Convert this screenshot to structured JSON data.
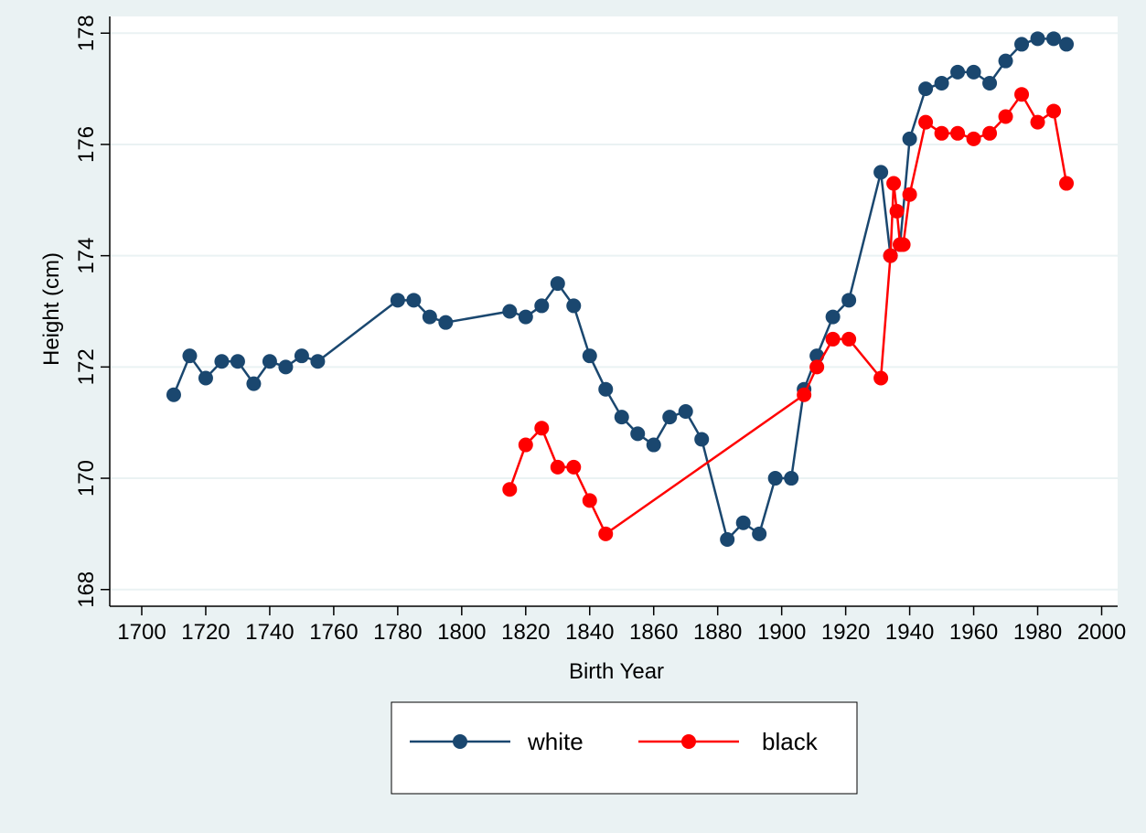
{
  "chart_data": {
    "type": "line",
    "xlabel": "Birth Year",
    "ylabel": "Height (cm)",
    "xlim": [
      1690,
      2005
    ],
    "ylim": [
      167.7,
      178.3
    ],
    "xticks": [
      1700,
      1720,
      1740,
      1760,
      1780,
      1800,
      1820,
      1840,
      1860,
      1880,
      1900,
      1920,
      1940,
      1960,
      1980,
      2000
    ],
    "yticks": [
      168,
      170,
      172,
      174,
      176,
      178
    ],
    "grid": true,
    "legend_position": "bottom",
    "series": [
      {
        "name": "white",
        "color": "#1a476f",
        "x": [
          1710,
          1715,
          1720,
          1725,
          1730,
          1735,
          1740,
          1745,
          1750,
          1755,
          1780,
          1785,
          1790,
          1795,
          1815,
          1820,
          1825,
          1830,
          1835,
          1840,
          1845,
          1850,
          1855,
          1860,
          1865,
          1870,
          1875,
          1883,
          1888,
          1893,
          1898,
          1903,
          1907,
          1911,
          1916,
          1921,
          1931,
          1934,
          1937,
          1940,
          1945,
          1950,
          1955,
          1960,
          1965,
          1970,
          1975,
          1980,
          1985,
          1989
        ],
        "y": [
          171.5,
          172.2,
          171.8,
          172.1,
          172.1,
          171.7,
          172.1,
          172.0,
          172.2,
          172.1,
          173.2,
          173.2,
          172.9,
          172.8,
          173.0,
          172.9,
          173.1,
          173.5,
          173.1,
          172.2,
          171.6,
          171.1,
          170.8,
          170.6,
          171.1,
          171.2,
          170.7,
          168.9,
          169.2,
          169.0,
          170.0,
          170.0,
          171.6,
          172.2,
          172.9,
          173.2,
          175.5,
          174.0,
          174.2,
          176.1,
          177.0,
          177.1,
          177.3,
          177.3,
          177.1,
          177.5,
          177.8,
          177.9,
          177.9,
          177.8
        ]
      },
      {
        "name": "black",
        "color": "#ff0000",
        "x": [
          1815,
          1820,
          1825,
          1830,
          1835,
          1840,
          1845,
          1907,
          1911,
          1916,
          1921,
          1931,
          1934,
          1935,
          1936,
          1937,
          1938,
          1940,
          1945,
          1950,
          1955,
          1960,
          1965,
          1970,
          1975,
          1980,
          1985,
          1989
        ],
        "y": [
          169.8,
          170.6,
          170.9,
          170.2,
          170.2,
          169.6,
          169.0,
          171.5,
          172.0,
          172.5,
          172.5,
          171.8,
          174.0,
          175.3,
          174.8,
          174.2,
          174.2,
          175.1,
          176.4,
          176.2,
          176.2,
          176.1,
          176.2,
          176.5,
          176.9,
          176.4,
          176.6,
          175.3
        ]
      }
    ]
  }
}
